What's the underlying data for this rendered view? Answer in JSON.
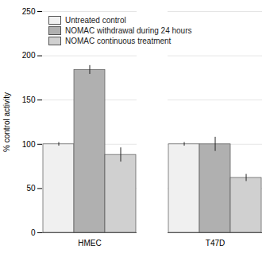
{
  "chart_data": {
    "type": "bar",
    "ylabel": "% control activity",
    "categories": [
      "HMEC",
      "T47D"
    ],
    "series": [
      {
        "name": "Untreated control",
        "color": "#f0f0f0",
        "values": [
          100,
          100
        ],
        "errors": [
          2,
          2
        ]
      },
      {
        "name": "NOMAC withdrawal during 24 hours",
        "color": "#b0b0b0",
        "values": [
          184,
          100
        ],
        "errors": [
          5,
          8
        ]
      },
      {
        "name": "NOMAC continuous treatment",
        "color": "#d0d0d0",
        "values": [
          88,
          62
        ],
        "errors": [
          8,
          4
        ]
      }
    ],
    "ylim": [
      0,
      250
    ],
    "yticks": [
      0,
      50,
      100,
      150,
      200,
      250
    ],
    "grid": true,
    "legend": "upper left"
  }
}
